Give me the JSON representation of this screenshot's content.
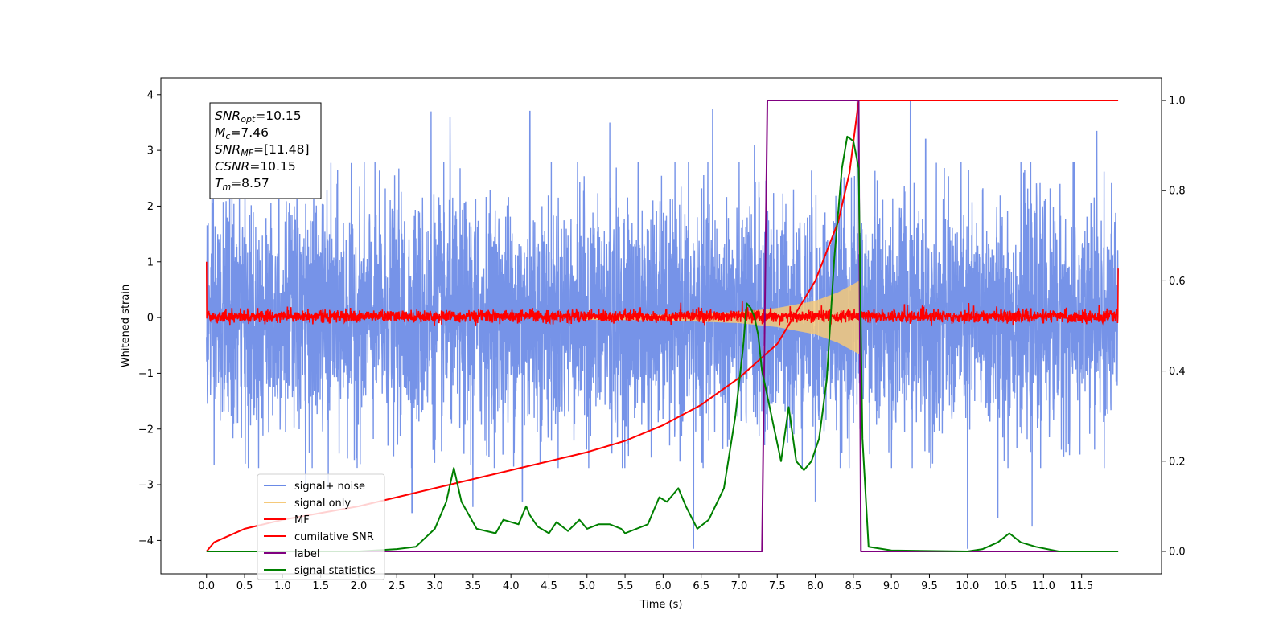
{
  "chart_data": {
    "type": "line",
    "xlabel": "Time (s)",
    "ylabel": "Whitened strain",
    "xlim": [
      -0.6,
      12.55
    ],
    "ylim": [
      -4.6,
      4.3
    ],
    "y2lim": [
      -0.05,
      1.05
    ],
    "x_ticks": [
      0.0,
      0.5,
      1.0,
      1.5,
      2.0,
      2.5,
      3.0,
      3.5,
      4.0,
      4.5,
      5.0,
      5.5,
      6.0,
      6.5,
      7.0,
      7.5,
      8.0,
      8.5,
      9.0,
      9.5,
      10.0,
      10.5,
      11.0,
      11.5
    ],
    "x_tick_labels": [
      "0.0",
      "0.5",
      "1.0",
      "1.5",
      "2.0",
      "2.5",
      "3.0",
      "3.5",
      "4.0",
      "4.5",
      "5.0",
      "5.5",
      "6.0",
      "6.5",
      "7.0",
      "7.5",
      "8.0",
      "8.5",
      "9.0",
      "9.5",
      "10.0",
      "10.5",
      "11.0",
      "11.5"
    ],
    "y_ticks": [
      -4,
      -3,
      -2,
      -1,
      0,
      1,
      2,
      3,
      4
    ],
    "y_tick_labels": [
      "−4",
      "−3",
      "−2",
      "−1",
      "0",
      "1",
      "2",
      "3",
      "4"
    ],
    "y2_ticks": [
      0.0,
      0.2,
      0.4,
      0.6,
      0.8,
      1.0
    ],
    "y2_tick_labels": [
      "0.0",
      "0.2",
      "0.4",
      "0.6",
      "0.8",
      "1.0"
    ],
    "grid": false,
    "legend_position": "lower-left",
    "annotation": {
      "lines": [
        {
          "name": "SNR",
          "sub": "opt",
          "value": "=10.15"
        },
        {
          "name": "M",
          "sub": "c",
          "value": "=7.46"
        },
        {
          "name": "SNR",
          "sub": "MF",
          "value": "=[11.48]"
        },
        {
          "name": "CSNR",
          "sub": "",
          "value": "=10.15"
        },
        {
          "name": "T",
          "sub": "m",
          "value": "=8.57"
        }
      ]
    },
    "series": [
      {
        "name": "signal+ noise",
        "axis": "left",
        "color": "#6a8ae6",
        "kind": "noise",
        "t_start": 0.0,
        "t_end": 11.98,
        "typical_envelope": [
          -2.2,
          2.3
        ],
        "peak_values": [
          [
            0.1,
            -2.65
          ],
          [
            0.55,
            -2.7
          ],
          [
            0.95,
            3.1
          ],
          [
            1.3,
            -3.0
          ],
          [
            1.6,
            -3.1
          ],
          [
            2.7,
            -3.5
          ],
          [
            2.95,
            3.7
          ],
          [
            3.2,
            3.6
          ],
          [
            3.5,
            -3.4
          ],
          [
            4.15,
            -3.3
          ],
          [
            4.25,
            3.7
          ],
          [
            5.3,
            3.5
          ],
          [
            6.4,
            -4.15
          ],
          [
            6.65,
            3.75
          ],
          [
            7.2,
            3.1
          ],
          [
            8.0,
            -3.3
          ],
          [
            8.55,
            3.9
          ],
          [
            9.25,
            3.9
          ],
          [
            9.45,
            3.2
          ],
          [
            10.0,
            -4.15
          ],
          [
            10.4,
            -3.6
          ],
          [
            10.85,
            -3.75
          ],
          [
            11.7,
            3.35
          ]
        ],
        "values": []
      },
      {
        "name": "signal only",
        "axis": "left",
        "color": "#f5c97a",
        "kind": "chirp",
        "t_merge": 8.57,
        "amplitude_at": [
          [
            0.0,
            0.0
          ],
          [
            6.0,
            0.05
          ],
          [
            7.0,
            0.1
          ],
          [
            7.5,
            0.17
          ],
          [
            8.0,
            0.3
          ],
          [
            8.3,
            0.45
          ],
          [
            8.57,
            0.65
          ]
        ],
        "values": []
      },
      {
        "name": "MF",
        "axis": "left",
        "color": "#ff0000",
        "kind": "noise-small",
        "t_start": 0.0,
        "t_end": 11.98,
        "typical_envelope": [
          -0.08,
          0.12
        ],
        "edge_values": [
          [
            0.0,
            1.0
          ],
          [
            11.98,
            0.88
          ]
        ],
        "values": []
      },
      {
        "name": "cumilative SNR",
        "axis": "right",
        "color": "#ff0000",
        "points": [
          [
            0.0,
            0.0
          ],
          [
            0.1,
            0.02
          ],
          [
            0.5,
            0.05
          ],
          [
            1.0,
            0.07
          ],
          [
            2.0,
            0.1
          ],
          [
            3.0,
            0.14
          ],
          [
            4.0,
            0.18
          ],
          [
            5.0,
            0.22
          ],
          [
            5.5,
            0.245
          ],
          [
            6.0,
            0.28
          ],
          [
            6.5,
            0.325
          ],
          [
            7.0,
            0.385
          ],
          [
            7.5,
            0.46
          ],
          [
            8.0,
            0.6
          ],
          [
            8.3,
            0.73
          ],
          [
            8.45,
            0.84
          ],
          [
            8.57,
            1.0
          ],
          [
            11.98,
            1.0
          ]
        ]
      },
      {
        "name": "label",
        "axis": "right",
        "color": "#800080",
        "points": [
          [
            0.0,
            0.0
          ],
          [
            7.3,
            0.0
          ],
          [
            7.37,
            1.0
          ],
          [
            8.57,
            1.0
          ],
          [
            8.6,
            0.0
          ],
          [
            11.98,
            0.0
          ]
        ]
      },
      {
        "name": "signal statistics",
        "axis": "right",
        "color": "#008000",
        "points": [
          [
            0.0,
            0.0
          ],
          [
            0.5,
            0.0
          ],
          [
            1.0,
            0.0
          ],
          [
            1.5,
            0.0
          ],
          [
            2.0,
            0.0
          ],
          [
            2.5,
            0.005
          ],
          [
            2.75,
            0.01
          ],
          [
            3.0,
            0.05
          ],
          [
            3.15,
            0.11
          ],
          [
            3.25,
            0.185
          ],
          [
            3.35,
            0.11
          ],
          [
            3.55,
            0.05
          ],
          [
            3.8,
            0.04
          ],
          [
            3.9,
            0.07
          ],
          [
            4.1,
            0.06
          ],
          [
            4.2,
            0.1
          ],
          [
            4.25,
            0.08
          ],
          [
            4.35,
            0.055
          ],
          [
            4.5,
            0.04
          ],
          [
            4.6,
            0.065
          ],
          [
            4.75,
            0.045
          ],
          [
            4.9,
            0.07
          ],
          [
            5.0,
            0.05
          ],
          [
            5.15,
            0.06
          ],
          [
            5.3,
            0.06
          ],
          [
            5.45,
            0.05
          ],
          [
            5.5,
            0.04
          ],
          [
            5.8,
            0.06
          ],
          [
            5.95,
            0.12
          ],
          [
            6.05,
            0.11
          ],
          [
            6.2,
            0.14
          ],
          [
            6.3,
            0.1
          ],
          [
            6.45,
            0.05
          ],
          [
            6.6,
            0.07
          ],
          [
            6.8,
            0.14
          ],
          [
            6.95,
            0.3
          ],
          [
            7.05,
            0.45
          ],
          [
            7.1,
            0.55
          ],
          [
            7.15,
            0.54
          ],
          [
            7.2,
            0.52
          ],
          [
            7.25,
            0.48
          ],
          [
            7.3,
            0.4
          ],
          [
            7.35,
            0.36
          ],
          [
            7.45,
            0.28
          ],
          [
            7.55,
            0.2
          ],
          [
            7.65,
            0.32
          ],
          [
            7.75,
            0.2
          ],
          [
            7.85,
            0.18
          ],
          [
            7.95,
            0.2
          ],
          [
            8.05,
            0.25
          ],
          [
            8.15,
            0.38
          ],
          [
            8.25,
            0.65
          ],
          [
            8.35,
            0.85
          ],
          [
            8.42,
            0.92
          ],
          [
            8.5,
            0.91
          ],
          [
            8.57,
            0.85
          ],
          [
            8.62,
            0.25
          ],
          [
            8.7,
            0.01
          ],
          [
            9.0,
            0.002
          ],
          [
            10.0,
            0.0
          ],
          [
            10.2,
            0.005
          ],
          [
            10.4,
            0.02
          ],
          [
            10.55,
            0.04
          ],
          [
            10.7,
            0.02
          ],
          [
            10.9,
            0.01
          ],
          [
            11.2,
            0.0
          ],
          [
            11.98,
            0.0
          ]
        ]
      }
    ]
  }
}
